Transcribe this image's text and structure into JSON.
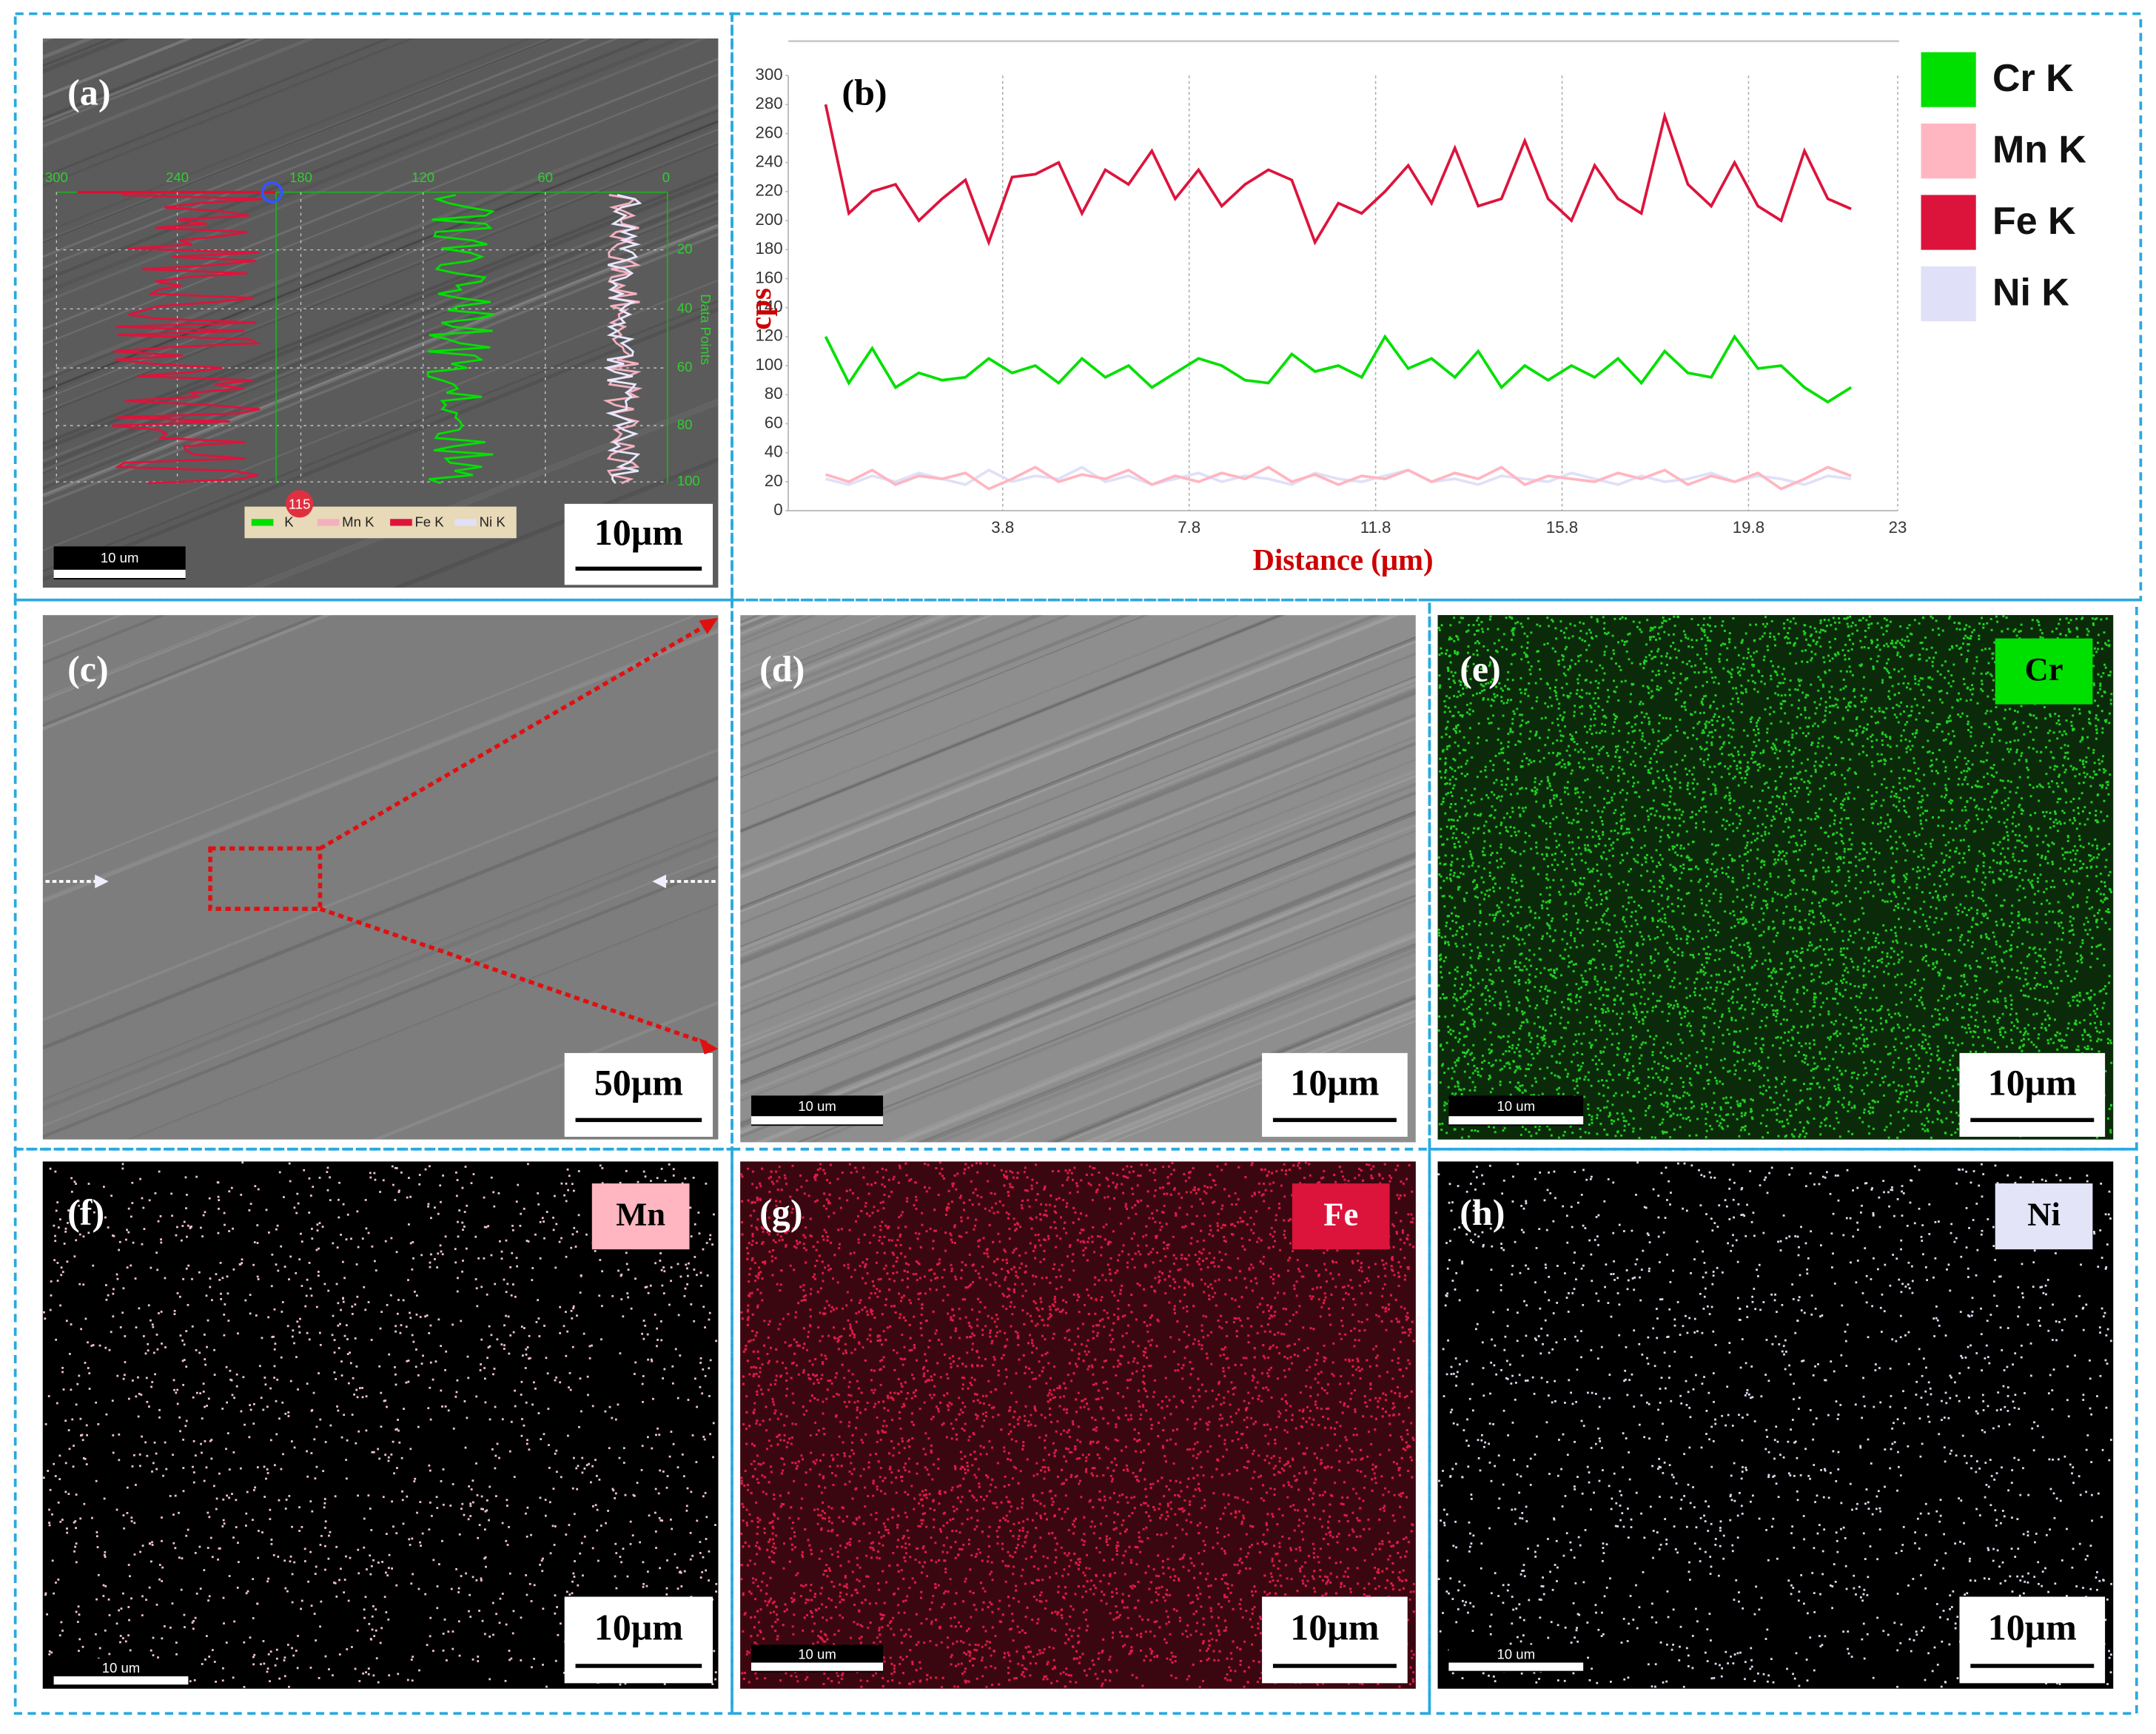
{
  "panels": {
    "a": {
      "label": "(a)",
      "scale_bar": "10μm",
      "inner_scale": "10 um",
      "profile_axis_top": [
        300,
        240,
        180,
        120,
        60,
        0
      ],
      "profile_axis_right": [
        20,
        40,
        60,
        80,
        100
      ],
      "profile_axis_title": "Data Points",
      "legend": [
        "K",
        "Mn K",
        "Fe K",
        "Ni K"
      ],
      "marker": "115"
    },
    "b": {
      "label": "(b)"
    },
    "c": {
      "label": "(c)",
      "scale_bar": "50μm"
    },
    "d": {
      "label": "(d)",
      "scale_bar": "10μm",
      "inner_scale": "10 um"
    },
    "e": {
      "label": "(e)",
      "scale_bar": "10μm",
      "inner_scale": "10 um",
      "element": "Cr"
    },
    "f": {
      "label": "(f)",
      "scale_bar": "10μm",
      "inner_scale": "10 um",
      "element": "Mn"
    },
    "g": {
      "label": "(g)",
      "scale_bar": "10μm",
      "inner_scale": "10 um",
      "element": "Fe"
    },
    "h": {
      "label": "(h)",
      "scale_bar": "10μm",
      "inner_scale": "10 um",
      "element": "Ni"
    }
  },
  "chart_data": {
    "type": "line",
    "xlabel": "Distance (μm)",
    "ylabel": "cps",
    "grid": "x",
    "x": [
      0,
      0.5,
      1,
      1.5,
      2,
      2.5,
      3,
      3.5,
      4,
      4.5,
      5,
      5.5,
      6,
      6.5,
      7,
      7.5,
      8,
      8.5,
      9,
      9.5,
      10,
      10.5,
      11,
      11.5,
      12,
      12.5,
      13,
      13.5,
      14,
      14.5,
      15,
      15.5,
      16,
      16.5,
      17,
      17.5,
      18,
      18.5,
      19,
      19.5,
      20,
      20.5,
      21,
      21.5,
      22
    ],
    "series": [
      {
        "name": "Cr K",
        "color": "#00e000",
        "values": [
          120,
          88,
          112,
          85,
          95,
          90,
          92,
          105,
          95,
          100,
          88,
          105,
          92,
          100,
          85,
          95,
          105,
          100,
          90,
          88,
          108,
          96,
          100,
          92,
          120,
          98,
          105,
          92,
          110,
          85,
          100,
          90,
          100,
          92,
          105,
          88,
          110,
          95,
          92,
          120,
          98,
          100,
          85,
          75,
          85
        ]
      },
      {
        "name": "Mn K",
        "color": "#ffb6c1",
        "values": [
          25,
          20,
          28,
          18,
          24,
          22,
          26,
          15,
          22,
          30,
          20,
          25,
          22,
          28,
          18,
          24,
          20,
          26,
          22,
          30,
          20,
          25,
          18,
          24,
          22,
          28,
          20,
          26,
          22,
          30,
          18,
          24,
          22,
          20,
          26,
          22,
          28,
          18,
          24,
          20,
          26,
          15,
          22,
          30,
          24
        ]
      },
      {
        "name": "Fe K",
        "color": "#dc143c",
        "values": [
          280,
          205,
          220,
          225,
          200,
          215,
          228,
          185,
          230,
          232,
          240,
          205,
          235,
          225,
          248,
          215,
          235,
          210,
          225,
          235,
          228,
          185,
          212,
          205,
          220,
          238,
          212,
          250,
          210,
          215,
          255,
          215,
          200,
          238,
          215,
          205,
          272,
          225,
          210,
          240,
          210,
          200,
          248,
          215,
          208
        ]
      },
      {
        "name": "Ni K",
        "color": "#e0e0f8",
        "values": [
          22,
          18,
          24,
          20,
          26,
          22,
          18,
          28,
          20,
          24,
          22,
          30,
          20,
          24,
          18,
          22,
          26,
          20,
          24,
          22,
          18,
          26,
          22,
          20,
          24,
          28,
          20,
          22,
          18,
          24,
          22,
          20,
          26,
          22,
          18,
          24,
          20,
          22,
          26,
          20,
          24,
          22,
          18,
          24,
          22
        ]
      }
    ],
    "xlim": [
      -0.8,
      23
    ],
    "ylim": [
      0,
      300
    ],
    "xticks": [
      3.8,
      7.8,
      11.8,
      15.8,
      19.8,
      23
    ],
    "yticks": [
      0,
      20,
      40,
      60,
      80,
      100,
      120,
      140,
      160,
      180,
      200,
      220,
      240,
      260,
      280,
      300
    ]
  }
}
